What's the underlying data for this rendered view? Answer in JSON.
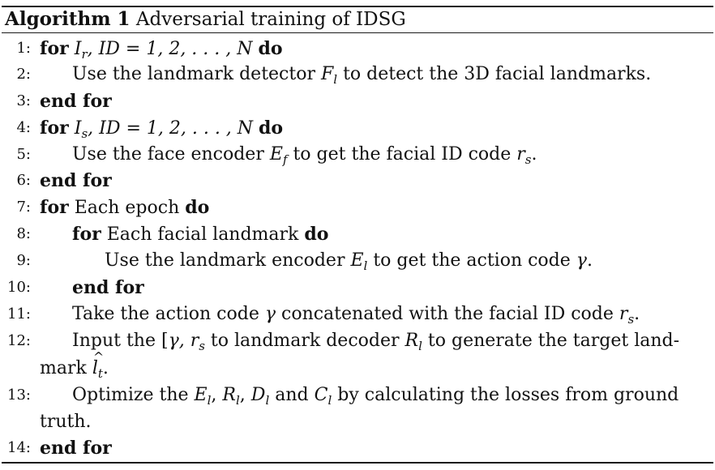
{
  "caption": {
    "label": "Algorithm 1",
    "title": "Adversarial training of IDSG"
  },
  "lines": [
    {
      "num": "1:",
      "parts": [
        "for",
        "I",
        "r",
        ", ID = 1, 2, . . . , N",
        "do"
      ]
    },
    {
      "num": "2:",
      "parts": [
        "Use the landmark detector",
        "F",
        "l",
        "to detect the 3D facial landmarks."
      ]
    },
    {
      "num": "3:",
      "parts": [
        "end for"
      ]
    },
    {
      "num": "4:",
      "parts": [
        "for",
        "I",
        "s",
        ", ID = 1, 2, . . . , N",
        "do"
      ]
    },
    {
      "num": "5:",
      "parts": [
        "Use the face encoder",
        "E",
        "f",
        "to get the facial ID code",
        "r",
        "s",
        "."
      ]
    },
    {
      "num": "6:",
      "parts": [
        "end for"
      ]
    },
    {
      "num": "7:",
      "parts": [
        "for",
        "Each epoch",
        "do"
      ]
    },
    {
      "num": "8:",
      "parts": [
        "for",
        "Each facial landmark",
        "do"
      ]
    },
    {
      "num": "9:",
      "parts": [
        "Use the landmark encoder",
        "E",
        "l",
        "to get the action code",
        "γ",
        "."
      ]
    },
    {
      "num": "10:",
      "parts": [
        "end for"
      ]
    },
    {
      "num": "11:",
      "parts": [
        "Take the action code",
        "γ",
        "concatenated with the facial ID code",
        "r",
        "s",
        "."
      ]
    },
    {
      "num": "12:",
      "parts": [
        "Input the [",
        "γ, r",
        "s",
        "to landmark decoder",
        "R",
        "l",
        "to generate the target land-",
        "mark",
        "l",
        "t",
        "."
      ]
    },
    {
      "num": "13:",
      "parts": [
        "Optimize the",
        "E",
        "l",
        ",",
        "R",
        "l",
        ",",
        "D",
        "l",
        "and",
        "C",
        "l",
        "by calculating the losses from ground",
        "truth."
      ]
    },
    {
      "num": "14:",
      "parts": [
        "end for"
      ]
    }
  ]
}
